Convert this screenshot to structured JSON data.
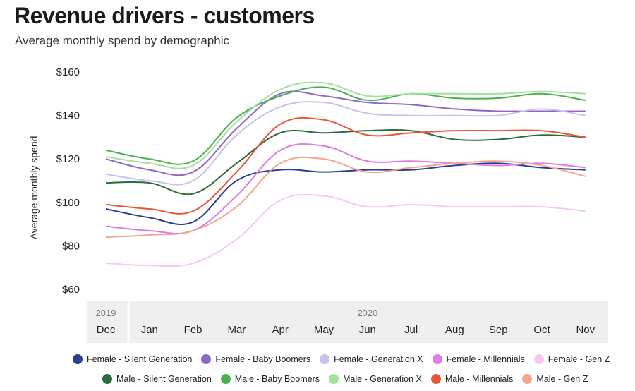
{
  "header": {
    "title": "Revenue drivers - customers",
    "subtitle": "Average monthly spend by demographic"
  },
  "chart_data": {
    "type": "line",
    "title": "Revenue drivers - customers",
    "subtitle": "Average monthly spend by demographic",
    "ylabel": "Average monthly spend",
    "xlabel": "",
    "ylim": [
      60,
      160
    ],
    "y_ticks": [
      "$60",
      "$80",
      "$100",
      "$120",
      "$140",
      "$160"
    ],
    "grid": false,
    "legend_position": "bottom",
    "year_labels": [
      {
        "label": "2019",
        "at": "Dec"
      },
      {
        "label": "2020",
        "at": "Jun"
      }
    ],
    "categories": [
      "Dec",
      "Jan",
      "Feb",
      "Mar",
      "Apr",
      "May",
      "Jun",
      "Jul",
      "Aug",
      "Sep",
      "Oct",
      "Nov"
    ],
    "series": [
      {
        "name": "Female - Silent Generation",
        "color": "#2a3f8f",
        "values": [
          97,
          93,
          91,
          110,
          115,
          114,
          115,
          115,
          117,
          118,
          116,
          115
        ]
      },
      {
        "name": "Female - Baby Boomers",
        "color": "#9067c6",
        "values": [
          120,
          115,
          114,
          134,
          150,
          149,
          146,
          145,
          143,
          142,
          142,
          142
        ]
      },
      {
        "name": "Female - Generation X",
        "color": "#c5c2ef",
        "values": [
          113,
          110,
          110,
          131,
          144,
          146,
          141,
          140,
          140,
          140,
          143,
          140
        ]
      },
      {
        "name": "Female - Millennials",
        "color": "#e07be0",
        "values": [
          89,
          87,
          87,
          103,
          124,
          126,
          119,
          119,
          118,
          117,
          118,
          116
        ]
      },
      {
        "name": "Female - Gen Z",
        "color": "#f3c9f3",
        "values": [
          72,
          71,
          72,
          83,
          101,
          103,
          98,
          99,
          98,
          98,
          98,
          96
        ]
      },
      {
        "name": "Male - Silent Generation",
        "color": "#2e6b3a",
        "values": [
          109,
          109,
          104,
          118,
          132,
          132,
          133,
          133,
          129,
          129,
          131,
          130
        ]
      },
      {
        "name": "Male - Baby Boomers",
        "color": "#4caf50",
        "values": [
          124,
          120,
          119,
          139,
          149,
          153,
          147,
          150,
          148,
          148,
          150,
          147
        ]
      },
      {
        "name": "Male - Generation X",
        "color": "#a5e0a0",
        "values": [
          121,
          118,
          117,
          137,
          152,
          155,
          149,
          150,
          150,
          150,
          151,
          150
        ]
      },
      {
        "name": "Male - Millennials",
        "color": "#e8573a",
        "values": [
          99,
          97,
          96,
          114,
          136,
          138,
          131,
          132,
          133,
          133,
          133,
          130
        ]
      },
      {
        "name": "Male - Gen Z",
        "color": "#f4a58e",
        "values": [
          84,
          85,
          87,
          98,
          118,
          120,
          114,
          116,
          118,
          119,
          117,
          112
        ]
      }
    ]
  }
}
